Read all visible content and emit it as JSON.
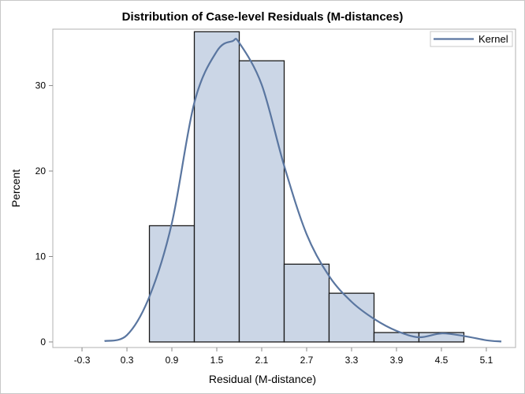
{
  "chart_data": {
    "type": "bar",
    "title": "Distribution of Case-level Residuals (M-distances)",
    "xlabel": "Residual (M-distance)",
    "ylabel": "Percent",
    "xlim": [
      -0.69,
      5.49
    ],
    "ylim": [
      -0.65,
      36.6
    ],
    "x_ticks": [
      "-0.3",
      "0.3",
      "0.9",
      "1.5",
      "2.1",
      "2.7",
      "3.3",
      "3.9",
      "4.5",
      "5.1"
    ],
    "y_ticks": [
      "0",
      "10",
      "20",
      "30"
    ],
    "grid": false,
    "bins": [
      {
        "start": 0.6,
        "end": 1.2,
        "value": 13.6
      },
      {
        "start": 1.2,
        "end": 1.8,
        "value": 36.3
      },
      {
        "start": 1.8,
        "end": 2.4,
        "value": 32.9
      },
      {
        "start": 2.4,
        "end": 3.0,
        "value": 9.1
      },
      {
        "start": 3.0,
        "end": 3.6,
        "value": 5.7
      },
      {
        "start": 3.6,
        "end": 4.2,
        "value": 1.1
      },
      {
        "start": 4.2,
        "end": 4.8,
        "value": 1.1
      }
    ],
    "series": [
      {
        "name": "Kernel",
        "type": "line",
        "x": [
          0.0,
          0.3,
          0.6,
          0.9,
          1.2,
          1.5,
          1.71,
          1.8,
          2.1,
          2.4,
          2.7,
          3.0,
          3.3,
          3.6,
          3.9,
          4.2,
          4.5,
          4.8,
          5.1,
          5.3
        ],
        "y": [
          0.1,
          0.8,
          5.3,
          13.9,
          28.0,
          34.0,
          35.2,
          35.0,
          30.1,
          20.6,
          12.6,
          7.7,
          4.7,
          2.7,
          1.3,
          0.55,
          1.0,
          0.7,
          0.2,
          0.05
        ]
      }
    ],
    "legend": {
      "position": "top-right",
      "entries": [
        "Kernel"
      ]
    },
    "colors": {
      "bar_fill": "#cbd6e6",
      "bar_stroke": "#1a1a1a",
      "kernel": "#5a76a0",
      "frame": "#b0b0b0"
    }
  }
}
